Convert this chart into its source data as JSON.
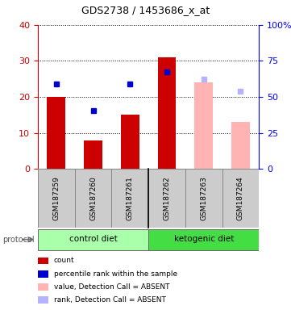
{
  "title": "GDS2738 / 1453686_x_at",
  "samples": [
    "GSM187259",
    "GSM187260",
    "GSM187261",
    "GSM187262",
    "GSM187263",
    "GSM187264"
  ],
  "bar_values": [
    20,
    8,
    15,
    31,
    24,
    13
  ],
  "bar_colors": [
    "#cc0000",
    "#cc0000",
    "#cc0000",
    "#cc0000",
    "#ffb3b3",
    "#ffb3b3"
  ],
  "dot_values": [
    23.5,
    16.2,
    23.5,
    27.0,
    null,
    null
  ],
  "dot_color": "#0000cc",
  "absent_rank_values": [
    null,
    null,
    null,
    null,
    25.0,
    21.5
  ],
  "absent_rank_color": "#b3b3ff",
  "ylim_left": [
    0,
    40
  ],
  "ylim_right": [
    0,
    100
  ],
  "yticks_left": [
    0,
    10,
    20,
    30,
    40
  ],
  "ytick_labels_left": [
    "0",
    "10",
    "20",
    "30",
    "40"
  ],
  "yticks_right": [
    0,
    25,
    50,
    75,
    100
  ],
  "ytick_labels_right": [
    "0",
    "25",
    "50",
    "75",
    "100%"
  ],
  "control_diet_color": "#aaffaa",
  "ketogenic_diet_color": "#44dd44",
  "protocol_label": "protocol",
  "legend_items": [
    {
      "color": "#cc0000",
      "label": "count"
    },
    {
      "color": "#0000cc",
      "label": "percentile rank within the sample"
    },
    {
      "color": "#ffb3b3",
      "label": "value, Detection Call = ABSENT"
    },
    {
      "color": "#b3b3ff",
      "label": "rank, Detection Call = ABSENT"
    }
  ],
  "bg_color": "#cccccc",
  "left_axis_color": "#cc0000",
  "right_axis_color": "#0000ff",
  "title_fontsize": 9,
  "tick_fontsize": 8,
  "label_fontsize": 7
}
